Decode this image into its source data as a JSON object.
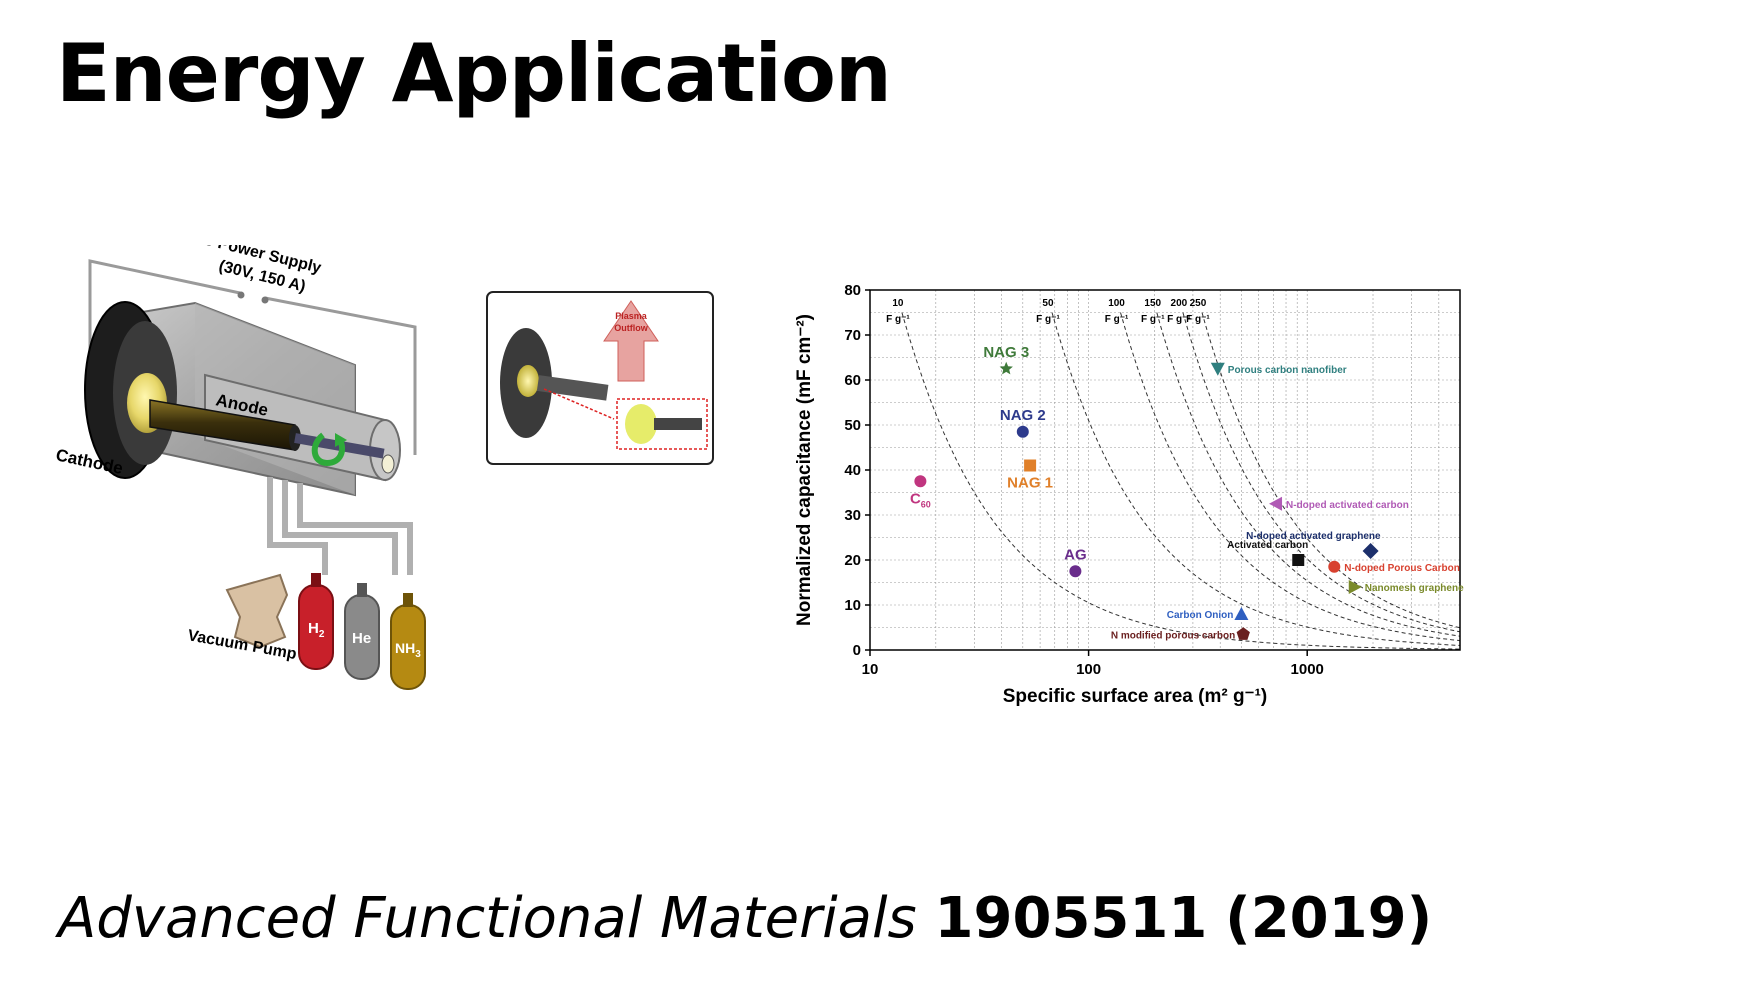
{
  "slide": {
    "title": "Energy Application",
    "citation": {
      "journal": "Advanced Functional Materials",
      "volume": "1905511",
      "year": "(2019)"
    }
  },
  "apparatus": {
    "power_supply": [
      "DC Power Supply",
      "(30V, 150 A)"
    ],
    "anode_label": "Anode",
    "cathode_label": "Cathode",
    "vacuum_pump_label": "Vacuum Pump",
    "gases": [
      {
        "label": "H",
        "sub": "2",
        "color": "#c8202a"
      },
      {
        "label": "He",
        "sub": "",
        "color": "#8a8a8a"
      },
      {
        "label": "NH",
        "sub": "3",
        "color": "#b58a12"
      }
    ],
    "inset_label": [
      "Plasma",
      "Outflow"
    ]
  },
  "chart_data": {
    "type": "scatter",
    "xlabel": "Specific surface area (m² g⁻¹)",
    "ylabel": "Normalized capacitance (mF cm⁻²)",
    "x_scale": "log",
    "xlim": [
      10,
      5000
    ],
    "ylim": [
      0,
      80
    ],
    "x_ticks": [
      10,
      100,
      1000
    ],
    "y_ticks": [
      0,
      10,
      20,
      30,
      40,
      50,
      60,
      70,
      80
    ],
    "grid": true,
    "iso_lines": [
      {
        "label": "10",
        "unit": "F g⁻¹",
        "value": 10
      },
      {
        "label": "50",
        "unit": "F g⁻¹",
        "value": 50
      },
      {
        "label": "100",
        "unit": "F g⁻¹",
        "value": 100
      },
      {
        "label": "150",
        "unit": "F g⁻¹",
        "value": 150
      },
      {
        "label": "200",
        "unit": "F g⁻¹",
        "value": 200
      },
      {
        "label": "250",
        "unit": "F g⁻¹",
        "value": 250
      }
    ],
    "points": [
      {
        "name": "NAG 3",
        "x": 42,
        "y": 62.5,
        "color": "#3f7a3a",
        "marker": "star",
        "label_side": "above"
      },
      {
        "name": "NAG 2",
        "x": 50,
        "y": 48.5,
        "color": "#2d3a8c",
        "marker": "circle",
        "label_side": "above"
      },
      {
        "name": "NAG 1",
        "x": 54,
        "y": 41,
        "color": "#e0802a",
        "marker": "square",
        "label_side": "below"
      },
      {
        "name": "C",
        "sub": "60",
        "x": 17,
        "y": 37.5,
        "color": "#c0357f",
        "marker": "circle",
        "label_side": "below"
      },
      {
        "name": "AG",
        "x": 87,
        "y": 17.5,
        "color": "#6a2d8c",
        "marker": "circle",
        "label_side": "above"
      },
      {
        "name": "Porous carbon nanofiber",
        "x": 390,
        "y": 62.5,
        "color": "#2f7f7f",
        "marker": "tri-down",
        "label_side": "right"
      },
      {
        "name": "N-doped activated carbon",
        "x": 720,
        "y": 32.5,
        "color": "#b05ab5",
        "marker": "tri-left",
        "label_side": "right"
      },
      {
        "name": "N-doped activated graphene",
        "x": 1950,
        "y": 22,
        "color": "#1c2f6b",
        "marker": "diamond",
        "label_side": "above-left"
      },
      {
        "name": "Activated carbon",
        "x": 910,
        "y": 20,
        "color": "#111111",
        "marker": "square",
        "label_side": "above-left"
      },
      {
        "name": "N-doped Porous Carbon",
        "x": 1330,
        "y": 18.5,
        "color": "#d8412f",
        "marker": "circle",
        "label_side": "right"
      },
      {
        "name": "Nanomesh graphene",
        "x": 1650,
        "y": 14,
        "color": "#7a8a2a",
        "marker": "tri-right",
        "label_side": "right"
      },
      {
        "name": "Carbon Onion",
        "x": 500,
        "y": 8,
        "color": "#2f5fc0",
        "marker": "tri-up",
        "label_side": "left"
      },
      {
        "name": "N modified porous carbon",
        "x": 510,
        "y": 3.5,
        "color": "#6a1f1f",
        "marker": "pentagon",
        "label_side": "left"
      }
    ]
  }
}
